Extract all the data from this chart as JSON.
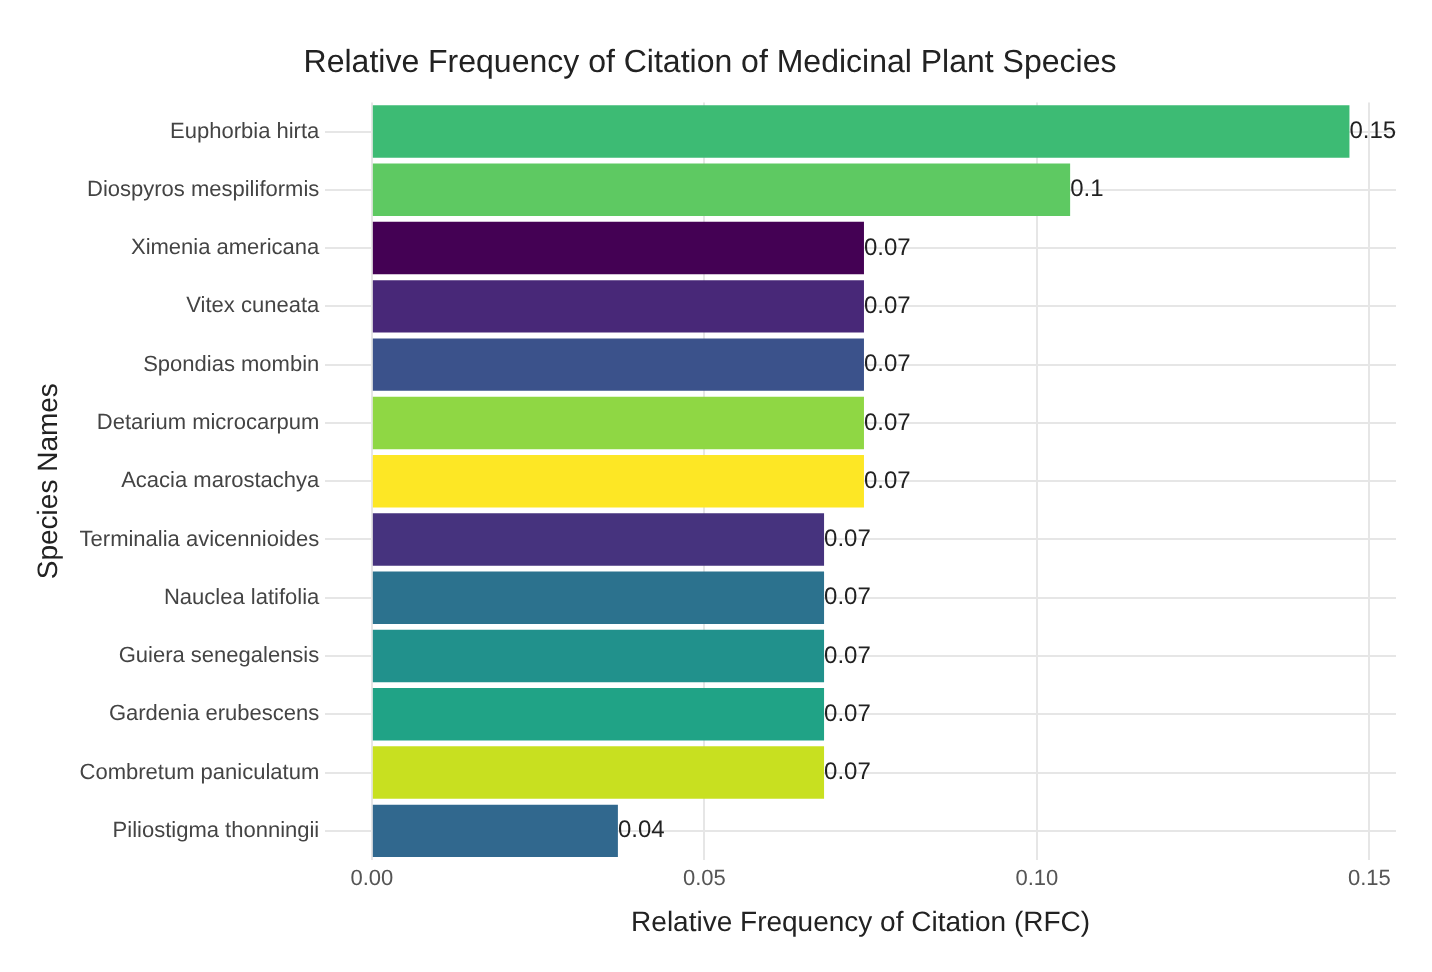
{
  "chart_data": {
    "type": "bar",
    "orientation": "horizontal",
    "title": "Relative Frequency of Citation of Medicinal Plant Species",
    "xlabel": "Relative Frequency of Citation (RFC)",
    "ylabel": "Species Names",
    "categories": [
      "Euphorbia hirta",
      "Diospyros mespiliformis",
      "Ximenia americana",
      "Vitex cuneata",
      "Spondias mombin",
      "Detarium microcarpum",
      "Acacia marostachya",
      "Terminalia avicennioides",
      "Nauclea latifolia",
      "Guiera senegalensis",
      "Gardenia erubescens",
      "Combretum paniculatum",
      "Piliostigma thonningii"
    ],
    "values": [
      0.147,
      0.105,
      0.074,
      0.074,
      0.074,
      0.074,
      0.074,
      0.068,
      0.068,
      0.068,
      0.068,
      0.068,
      0.037
    ],
    "value_labels": [
      "0.15",
      "0.1",
      "0.07",
      "0.07",
      "0.07",
      "0.07",
      "0.07",
      "0.07",
      "0.07",
      "0.07",
      "0.07",
      "0.07",
      "0.04"
    ],
    "colors": [
      "#3dbb74",
      "#5ec962",
      "#440154",
      "#482878",
      "#3b528b",
      "#8fd744",
      "#fde725",
      "#46337e",
      "#2c728e",
      "#21918c",
      "#20a386",
      "#c8e020",
      "#31688e"
    ],
    "xlim": [
      -0.007,
      0.154
    ],
    "xticks": [
      {
        "value": 0,
        "label": "0.00"
      },
      {
        "value": 0.05,
        "label": "0.05"
      },
      {
        "value": 0.1,
        "label": "0.10"
      },
      {
        "value": 0.15,
        "label": "0.15"
      }
    ],
    "grid": true,
    "legend": false
  }
}
